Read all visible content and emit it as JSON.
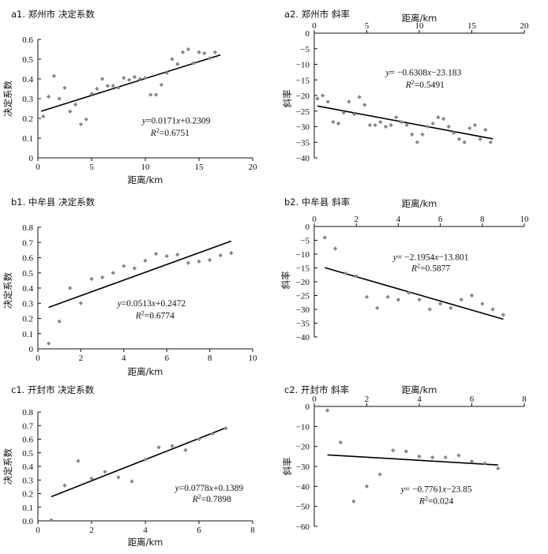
{
  "chart_data": [
    {
      "id": "a1",
      "type": "scatter",
      "title": "a1. 郑州市  决定系数",
      "xlabel": "距离/km",
      "ylabel": "决定系数",
      "xlim": [
        0,
        20
      ],
      "ylim": [
        0,
        0.6
      ],
      "x_ticks": [
        "0",
        "5",
        "10",
        "15",
        "20"
      ],
      "y_ticks": [
        "0",
        "0.1",
        "0.2",
        "0.3",
        "0.4",
        "0.5",
        "0.6"
      ],
      "x_axis_position": "bottom",
      "y_ticks_negative": false,
      "points": [
        [
          0.5,
          0.21
        ],
        [
          1,
          0.31
        ],
        [
          1.5,
          0.415
        ],
        [
          2,
          0.3
        ],
        [
          2.5,
          0.355
        ],
        [
          3,
          0.235
        ],
        [
          3.5,
          0.27
        ],
        [
          4,
          0.17
        ],
        [
          4.5,
          0.195
        ],
        [
          5,
          0.325
        ],
        [
          5.5,
          0.35
        ],
        [
          6,
          0.4
        ],
        [
          6.5,
          0.365
        ],
        [
          7,
          0.365
        ],
        [
          7.5,
          0.355
        ],
        [
          8,
          0.405
        ],
        [
          8.5,
          0.395
        ],
        [
          9,
          0.41
        ],
        [
          9.5,
          0.4
        ],
        [
          10,
          0.405
        ],
        [
          10.5,
          0.32
        ],
        [
          11,
          0.32
        ],
        [
          11.5,
          0.37
        ],
        [
          12,
          0.43
        ],
        [
          12.5,
          0.5
        ],
        [
          13,
          0.475
        ],
        [
          13.5,
          0.535
        ],
        [
          14,
          0.55
        ],
        [
          14.5,
          0.48
        ],
        [
          15,
          0.535
        ],
        [
          15.5,
          0.53
        ],
        [
          16,
          0.505
        ],
        [
          16.5,
          0.535
        ]
      ],
      "trend": {
        "slope": 0.0171,
        "intercept": 0.2309,
        "x_range": [
          0.3,
          17
        ]
      },
      "equation": {
        "yvar": "y",
        "rhs": "=0.0171",
        "xvar": "x",
        "tail": "+0.2309"
      },
      "r2": {
        "lhs": "R",
        "sup": "2",
        "rhs": "=0.6751"
      },
      "eq_pos": [
        9.7,
        0.175
      ],
      "eq_anchor": "start",
      "r2_pos": [
        10.5,
        0.113
      ],
      "r2_anchor": "start"
    },
    {
      "id": "a2",
      "type": "scatter",
      "title": "a2. 郑州市  斜率",
      "xlabel": "距离/km",
      "ylabel": "斜率",
      "xlim": [
        0,
        20
      ],
      "ylim": [
        -40,
        0
      ],
      "x_ticks": [
        "0",
        "5",
        "10",
        "15",
        "20"
      ],
      "y_ticks": [
        "0",
        "−5",
        "−10",
        "−15",
        "−20",
        "−25",
        "−30",
        "−35",
        "−40"
      ],
      "x_axis_position": "top",
      "y_ticks_negative": true,
      "points": [
        [
          0.3,
          -21
        ],
        [
          0.8,
          -20
        ],
        [
          1.3,
          -22
        ],
        [
          1.8,
          -28.5
        ],
        [
          2.3,
          -29
        ],
        [
          2.8,
          -25.5
        ],
        [
          3.3,
          -22
        ],
        [
          3.8,
          -26
        ],
        [
          4.3,
          -20.5
        ],
        [
          4.8,
          -23
        ],
        [
          5.3,
          -29.5
        ],
        [
          5.8,
          -29.5
        ],
        [
          6.3,
          -28.5
        ],
        [
          6.8,
          -30
        ],
        [
          7.3,
          -29.5
        ],
        [
          7.8,
          -27
        ],
        [
          8.3,
          -28.5
        ],
        [
          8.8,
          -29.5
        ],
        [
          9.3,
          -32.5
        ],
        [
          9.8,
          -35
        ],
        [
          10.3,
          -32.5
        ],
        [
          10.8,
          -30
        ],
        [
          11.3,
          -29
        ],
        [
          11.8,
          -27
        ],
        [
          12.3,
          -27.5
        ],
        [
          12.8,
          -30
        ],
        [
          13.3,
          -32
        ],
        [
          13.8,
          -34
        ],
        [
          14.3,
          -35
        ],
        [
          14.8,
          -30.5
        ],
        [
          15.3,
          -29.5
        ],
        [
          15.8,
          -34
        ],
        [
          16.3,
          -31
        ],
        [
          16.8,
          -35
        ]
      ],
      "trend": {
        "slope": -0.6308,
        "intercept": -23.183,
        "x_range": [
          0.3,
          17
        ]
      },
      "equation": {
        "yvar": "y",
        "rhs": "= −0.6308",
        "xvar": "x",
        "tail": "−23.183"
      },
      "r2": {
        "lhs": "R",
        "sup": "2",
        "rhs": "=0.5491"
      },
      "eq_pos": [
        6.8,
        -13.5
      ],
      "eq_anchor": "start",
      "r2_pos": [
        8.7,
        -17.5
      ],
      "r2_anchor": "start"
    },
    {
      "id": "b1",
      "type": "scatter",
      "title": "b1. 中牟县  决定系数",
      "xlabel": "距离/km",
      "ylabel": "决定系数",
      "xlim": [
        0,
        10
      ],
      "ylim": [
        0,
        0.8
      ],
      "x_ticks": [
        "0",
        "2",
        "4",
        "6",
        "8",
        "10"
      ],
      "y_ticks": [
        "0",
        "0.1",
        "0.2",
        "0.3",
        "0.4",
        "0.5",
        "0.6",
        "0.7",
        "0.8"
      ],
      "x_axis_position": "bottom",
      "y_ticks_negative": false,
      "points": [
        [
          0.5,
          0.035
        ],
        [
          1,
          0.18
        ],
        [
          1.5,
          0.4
        ],
        [
          2,
          0.3
        ],
        [
          2.5,
          0.46
        ],
        [
          3,
          0.47
        ],
        [
          3.5,
          0.5
        ],
        [
          4,
          0.545
        ],
        [
          4.5,
          0.53
        ],
        [
          5,
          0.58
        ],
        [
          5.5,
          0.625
        ],
        [
          6,
          0.61
        ],
        [
          6.5,
          0.62
        ],
        [
          7,
          0.565
        ],
        [
          7.5,
          0.575
        ],
        [
          8,
          0.585
        ],
        [
          8.5,
          0.615
        ],
        [
          9,
          0.63
        ]
      ],
      "trend": {
        "slope": 0.0513,
        "intercept": 0.2472,
        "x_range": [
          0.5,
          9
        ]
      },
      "equation": {
        "yvar": "y",
        "rhs": "=0.0513",
        "xvar": "x",
        "tail": "+0.2472"
      },
      "r2": {
        "lhs": "R",
        "sup": "2",
        "rhs": "=0.6774"
      },
      "eq_pos": [
        3.7,
        0.28
      ],
      "eq_anchor": "start",
      "r2_pos": [
        4.55,
        0.2
      ],
      "r2_anchor": "start"
    },
    {
      "id": "b2",
      "type": "scatter",
      "title": "b2. 中牟县  斜率",
      "xlabel": "距离/km",
      "ylabel": "斜率",
      "xlim": [
        0,
        10
      ],
      "ylim": [
        -40,
        0
      ],
      "x_ticks": [
        "0",
        "2",
        "4",
        "6",
        "8",
        "10"
      ],
      "y_ticks": [
        "0",
        "−5",
        "−10",
        "−15",
        "−20",
        "−25",
        "−30",
        "−35",
        "−40"
      ],
      "x_axis_position": "top",
      "y_ticks_negative": true,
      "points": [
        [
          0.5,
          -4
        ],
        [
          1,
          -8
        ],
        [
          1.5,
          -17
        ],
        [
          2,
          -18
        ],
        [
          2.5,
          -25.5
        ],
        [
          3,
          -29.5
        ],
        [
          3.5,
          -25.5
        ],
        [
          4,
          -26.5
        ],
        [
          4.5,
          -24
        ],
        [
          5,
          -26.5
        ],
        [
          5.5,
          -30
        ],
        [
          6,
          -28
        ],
        [
          6.5,
          -29.5
        ],
        [
          7,
          -26.5
        ],
        [
          7.5,
          -25
        ],
        [
          8,
          -28
        ],
        [
          8.5,
          -30
        ],
        [
          9,
          -32
        ]
      ],
      "trend": {
        "slope": -2.1954,
        "intercept": -13.801,
        "x_range": [
          0.5,
          9
        ]
      },
      "equation": {
        "yvar": "y",
        "rhs": "= −2.1954",
        "xvar": "x",
        "tail": "−13.801"
      },
      "r2": {
        "lhs": "R",
        "sup": "2",
        "rhs": "=0.5877"
      },
      "eq_pos": [
        5.55,
        -12.2
      ],
      "eq_anchor": "middle",
      "r2_pos": [
        5.55,
        -16.2
      ],
      "r2_anchor": "middle"
    },
    {
      "id": "c1",
      "type": "scatter",
      "title": "c1. 开封市  决定系数",
      "xlabel": "距离/km",
      "ylabel": "决定系数",
      "xlim": [
        0,
        8
      ],
      "ylim": [
        0,
        0.8
      ],
      "x_ticks": [
        "0",
        "2",
        "4",
        "6",
        "8"
      ],
      "y_ticks": [
        "0.0",
        "0.1",
        "0.2",
        "0.3",
        "0.4",
        "0.5",
        "0.6",
        "0.7",
        "0.8"
      ],
      "x_axis_position": "bottom",
      "y_ticks_negative": false,
      "points": [
        [
          0.5,
          0.005
        ],
        [
          1,
          0.26
        ],
        [
          1.5,
          0.44
        ],
        [
          2,
          0.31
        ],
        [
          2.5,
          0.36
        ],
        [
          3,
          0.32
        ],
        [
          3.5,
          0.29
        ],
        [
          4,
          0.45
        ],
        [
          4.5,
          0.54
        ],
        [
          5,
          0.55
        ],
        [
          5.5,
          0.52
        ],
        [
          6,
          0.6
        ],
        [
          6.5,
          0.64
        ],
        [
          7,
          0.68
        ]
      ],
      "trend": {
        "slope": 0.0778,
        "intercept": 0.1389,
        "x_range": [
          0.5,
          7
        ]
      },
      "equation": {
        "yvar": "y",
        "rhs": "=0.0778",
        "xvar": "x",
        "tail": "+0.1389"
      },
      "r2": {
        "lhs": "R",
        "sup": "2",
        "rhs": "=0.7898"
      },
      "eq_pos": [
        7.65,
        0.22
      ],
      "eq_anchor": "end",
      "r2_pos": [
        7.2,
        0.14
      ],
      "r2_anchor": "end"
    },
    {
      "id": "c2",
      "type": "scatter",
      "title": "c2. 开封市  斜率",
      "xlabel": "距离/km",
      "ylabel": "斜率",
      "xlim": [
        0,
        8
      ],
      "ylim": [
        -60,
        0
      ],
      "x_ticks": [
        "0",
        "2",
        "4",
        "6",
        "8"
      ],
      "y_ticks": [
        "0",
        "−10",
        "−20",
        "−30",
        "−40",
        "−50",
        "−60"
      ],
      "x_axis_position": "top",
      "y_ticks_negative": true,
      "points": [
        [
          0.5,
          -2
        ],
        [
          1,
          -18
        ],
        [
          1.5,
          -47.5
        ],
        [
          2,
          -40
        ],
        [
          2.5,
          -34
        ],
        [
          3,
          -22
        ],
        [
          3.5,
          -22.5
        ],
        [
          4,
          -25
        ],
        [
          4.5,
          -25.5
        ],
        [
          5,
          -25.5
        ],
        [
          5.5,
          -24.5
        ],
        [
          6,
          -27.5
        ],
        [
          6.5,
          -28.5
        ],
        [
          7,
          -31
        ]
      ],
      "trend": {
        "slope": -0.7761,
        "intercept": -23.85,
        "x_range": [
          0.5,
          7
        ]
      },
      "equation": {
        "yvar": "y",
        "rhs": "= −0.7761",
        "xvar": "x",
        "tail": "−23.85"
      },
      "r2": {
        "lhs": "R",
        "sup": "2",
        "rhs": "=0.024"
      },
      "eq_pos": [
        4.65,
        -42.8
      ],
      "eq_anchor": "middle",
      "r2_pos": [
        4.65,
        -48.8
      ],
      "r2_anchor": "middle"
    }
  ]
}
